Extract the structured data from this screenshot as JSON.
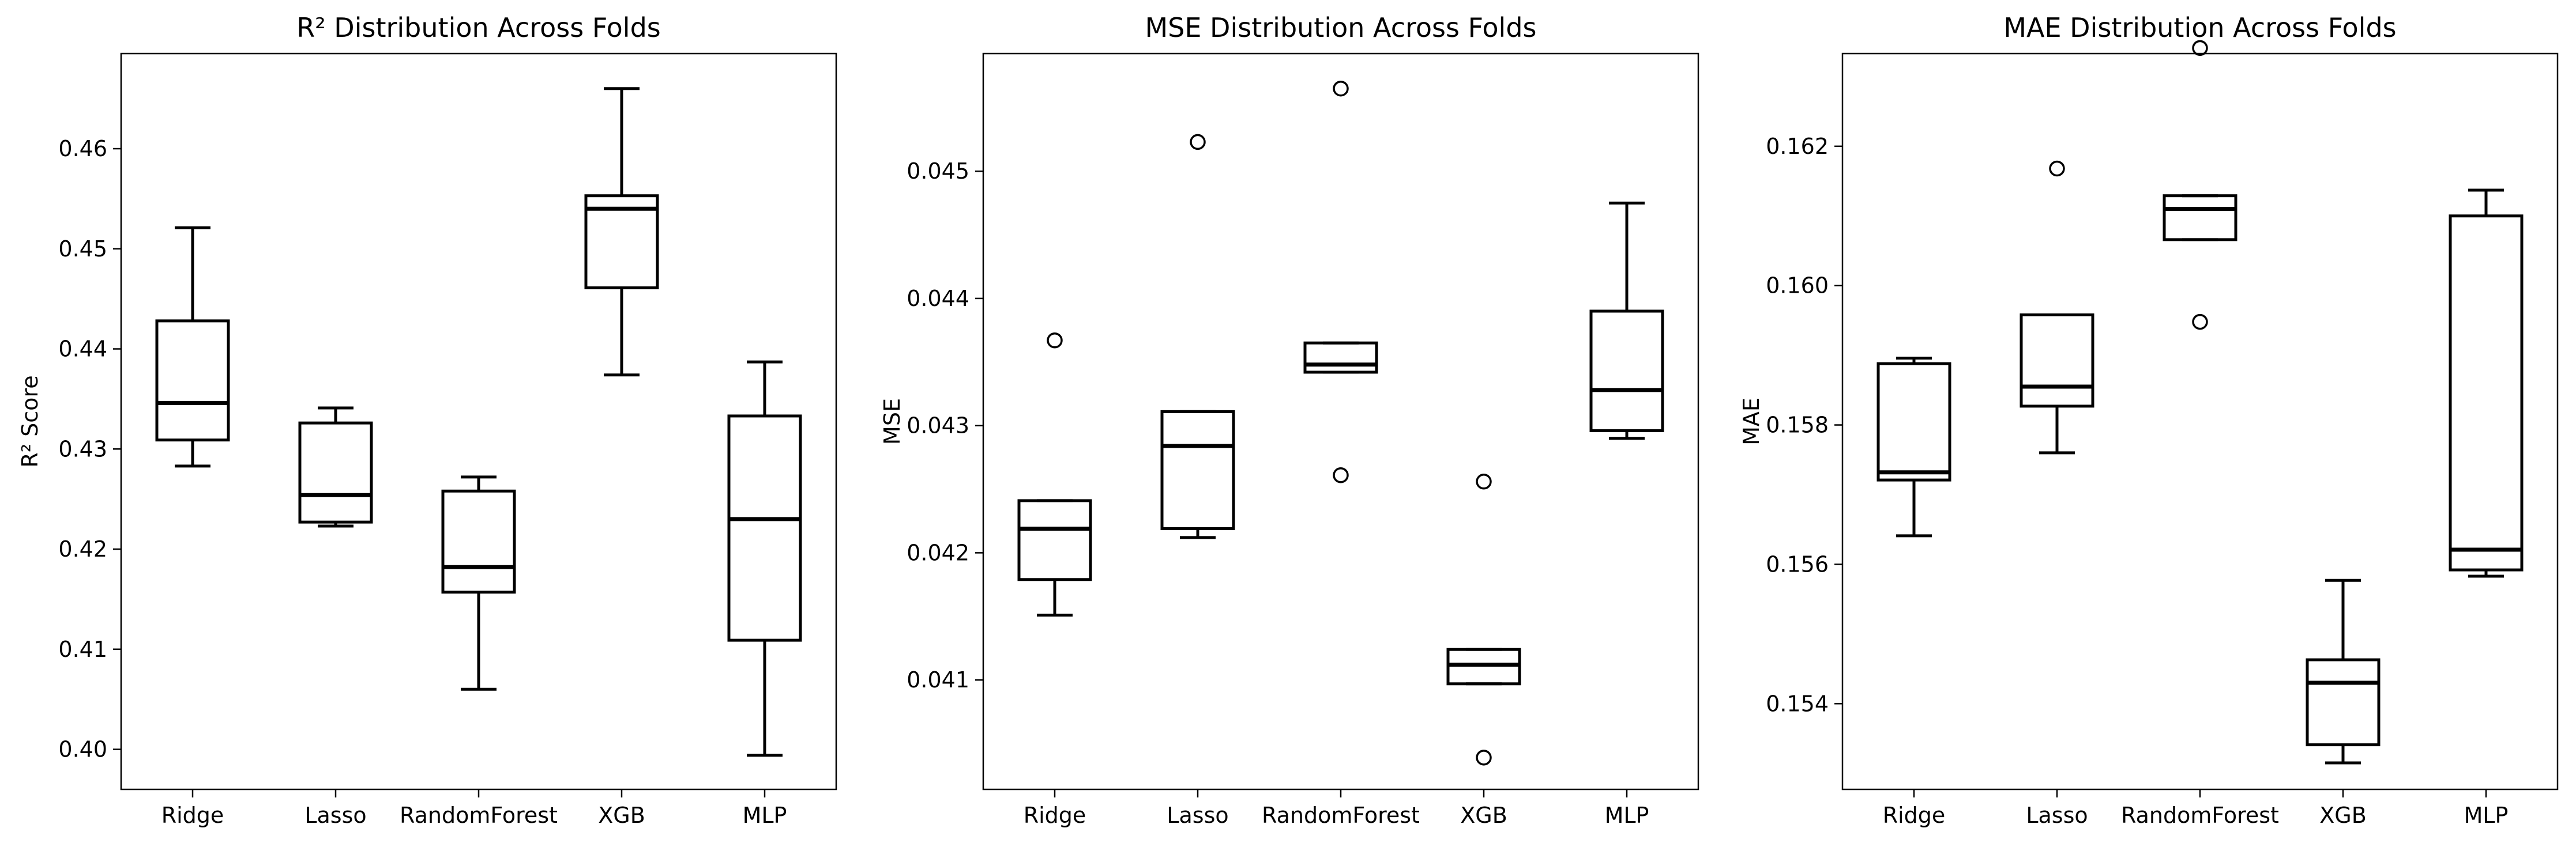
{
  "chart_data": [
    {
      "type": "box",
      "title": "R² Distribution Across Folds",
      "ylabel": "R² Score",
      "xlabel": "",
      "categories": [
        "Ridge",
        "Lasso",
        "RandomForest",
        "XGB",
        "MLP"
      ],
      "ylim": [
        0.396,
        0.4695
      ],
      "yticks": [
        0.4,
        0.41,
        0.42,
        0.43,
        0.44,
        0.45,
        0.46
      ],
      "tick_labels": [
        "0.40",
        "0.41",
        "0.42",
        "0.43",
        "0.44",
        "0.45",
        "0.46"
      ],
      "boxes": [
        {
          "whislo": 0.4283,
          "q1": 0.4309,
          "med": 0.4346,
          "q3": 0.4428,
          "whishi": 0.4521,
          "fliers": []
        },
        {
          "whislo": 0.4223,
          "q1": 0.4227,
          "med": 0.4254,
          "q3": 0.4326,
          "whishi": 0.4341,
          "fliers": []
        },
        {
          "whislo": 0.406,
          "q1": 0.4157,
          "med": 0.4182,
          "q3": 0.4258,
          "whishi": 0.4272,
          "fliers": []
        },
        {
          "whislo": 0.4374,
          "q1": 0.4461,
          "med": 0.454,
          "q3": 0.4553,
          "whishi": 0.466,
          "fliers": []
        },
        {
          "whislo": 0.3994,
          "q1": 0.4109,
          "med": 0.423,
          "q3": 0.4333,
          "whishi": 0.4387,
          "fliers": []
        }
      ]
    },
    {
      "type": "box",
      "title": "MSE Distribution Across Folds",
      "ylabel": "MSE",
      "xlabel": "",
      "categories": [
        "Ridge",
        "Lasso",
        "RandomForest",
        "XGB",
        "MLP"
      ],
      "ylim": [
        0.04014,
        0.045925
      ],
      "yticks": [
        0.041,
        0.042,
        0.043,
        0.044,
        0.045
      ],
      "tick_labels": [
        "0.041",
        "0.042",
        "0.043",
        "0.044",
        "0.045"
      ],
      "boxes": [
        {
          "whislo": 0.04151,
          "q1": 0.04179,
          "med": 0.04219,
          "q3": 0.04241,
          "whishi": 0.04241,
          "fliers": [
            0.04367
          ]
        },
        {
          "whislo": 0.04212,
          "q1": 0.04219,
          "med": 0.04284,
          "q3": 0.04311,
          "whishi": 0.04311,
          "fliers": [
            0.04523
          ]
        },
        {
          "whislo": 0.04342,
          "q1": 0.04342,
          "med": 0.04348,
          "q3": 0.04365,
          "whishi": 0.04365,
          "fliers": [
            0.04261,
            0.04565
          ]
        },
        {
          "whislo": 0.04097,
          "q1": 0.04097,
          "med": 0.04112,
          "q3": 0.04124,
          "whishi": 0.04124,
          "fliers": [
            0.04256,
            0.04039
          ]
        },
        {
          "whislo": 0.0429,
          "q1": 0.04296,
          "med": 0.04328,
          "q3": 0.0439,
          "whishi": 0.04475,
          "fliers": []
        }
      ]
    },
    {
      "type": "box",
      "title": "MAE Distribution Across Folds",
      "ylabel": "MAE",
      "xlabel": "",
      "categories": [
        "Ridge",
        "Lasso",
        "RandomForest",
        "XGB",
        "MLP"
      ],
      "ylim": [
        0.15277,
        0.16333
      ],
      "yticks": [
        0.154,
        0.156,
        0.158,
        0.16,
        0.162
      ],
      "tick_labels": [
        "0.154",
        "0.156",
        "0.158",
        "0.160",
        "0.162"
      ],
      "boxes": [
        {
          "whislo": 0.15641,
          "q1": 0.15721,
          "med": 0.15732,
          "q3": 0.15888,
          "whishi": 0.15896,
          "fliers": []
        },
        {
          "whislo": 0.1576,
          "q1": 0.15827,
          "med": 0.15855,
          "q3": 0.15958,
          "whishi": 0.15958,
          "fliers": [
            0.16168
          ]
        },
        {
          "whislo": 0.16066,
          "q1": 0.16066,
          "med": 0.1611,
          "q3": 0.16129,
          "whishi": 0.16129,
          "fliers": [
            0.15948,
            0.16341
          ]
        },
        {
          "whislo": 0.15315,
          "q1": 0.15341,
          "med": 0.1543,
          "q3": 0.15463,
          "whishi": 0.15577,
          "fliers": []
        },
        {
          "whislo": 0.15583,
          "q1": 0.15592,
          "med": 0.15621,
          "q3": 0.161,
          "whishi": 0.16137,
          "fliers": []
        }
      ]
    }
  ]
}
